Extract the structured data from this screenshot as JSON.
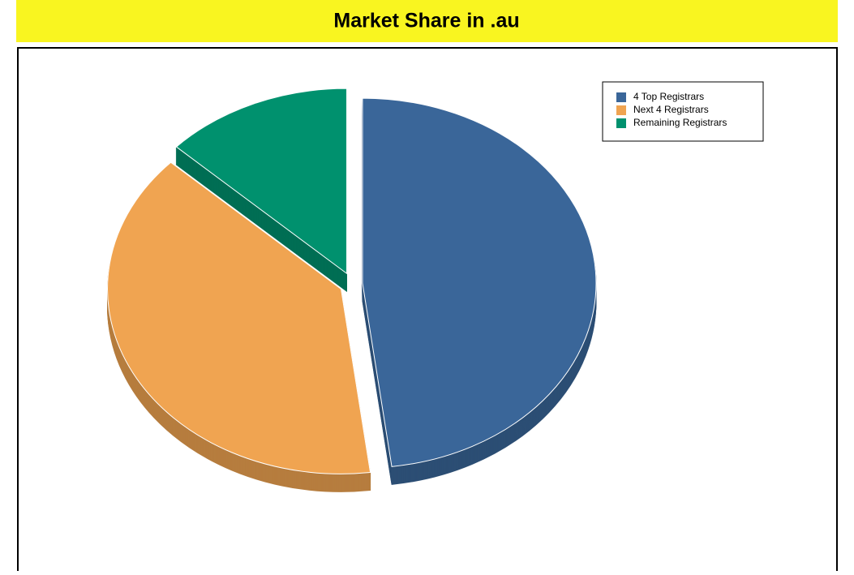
{
  "chart_data": {
    "type": "pie",
    "title": "Market Share in .au",
    "categories": [
      "4 Top Registrars",
      "Next 4 Registrars",
      "Remaining Registrars"
    ],
    "values": [
      48,
      39,
      13
    ],
    "colors": [
      "#3a6699",
      "#f0a451",
      "#00916e"
    ],
    "legend": "top-right"
  }
}
